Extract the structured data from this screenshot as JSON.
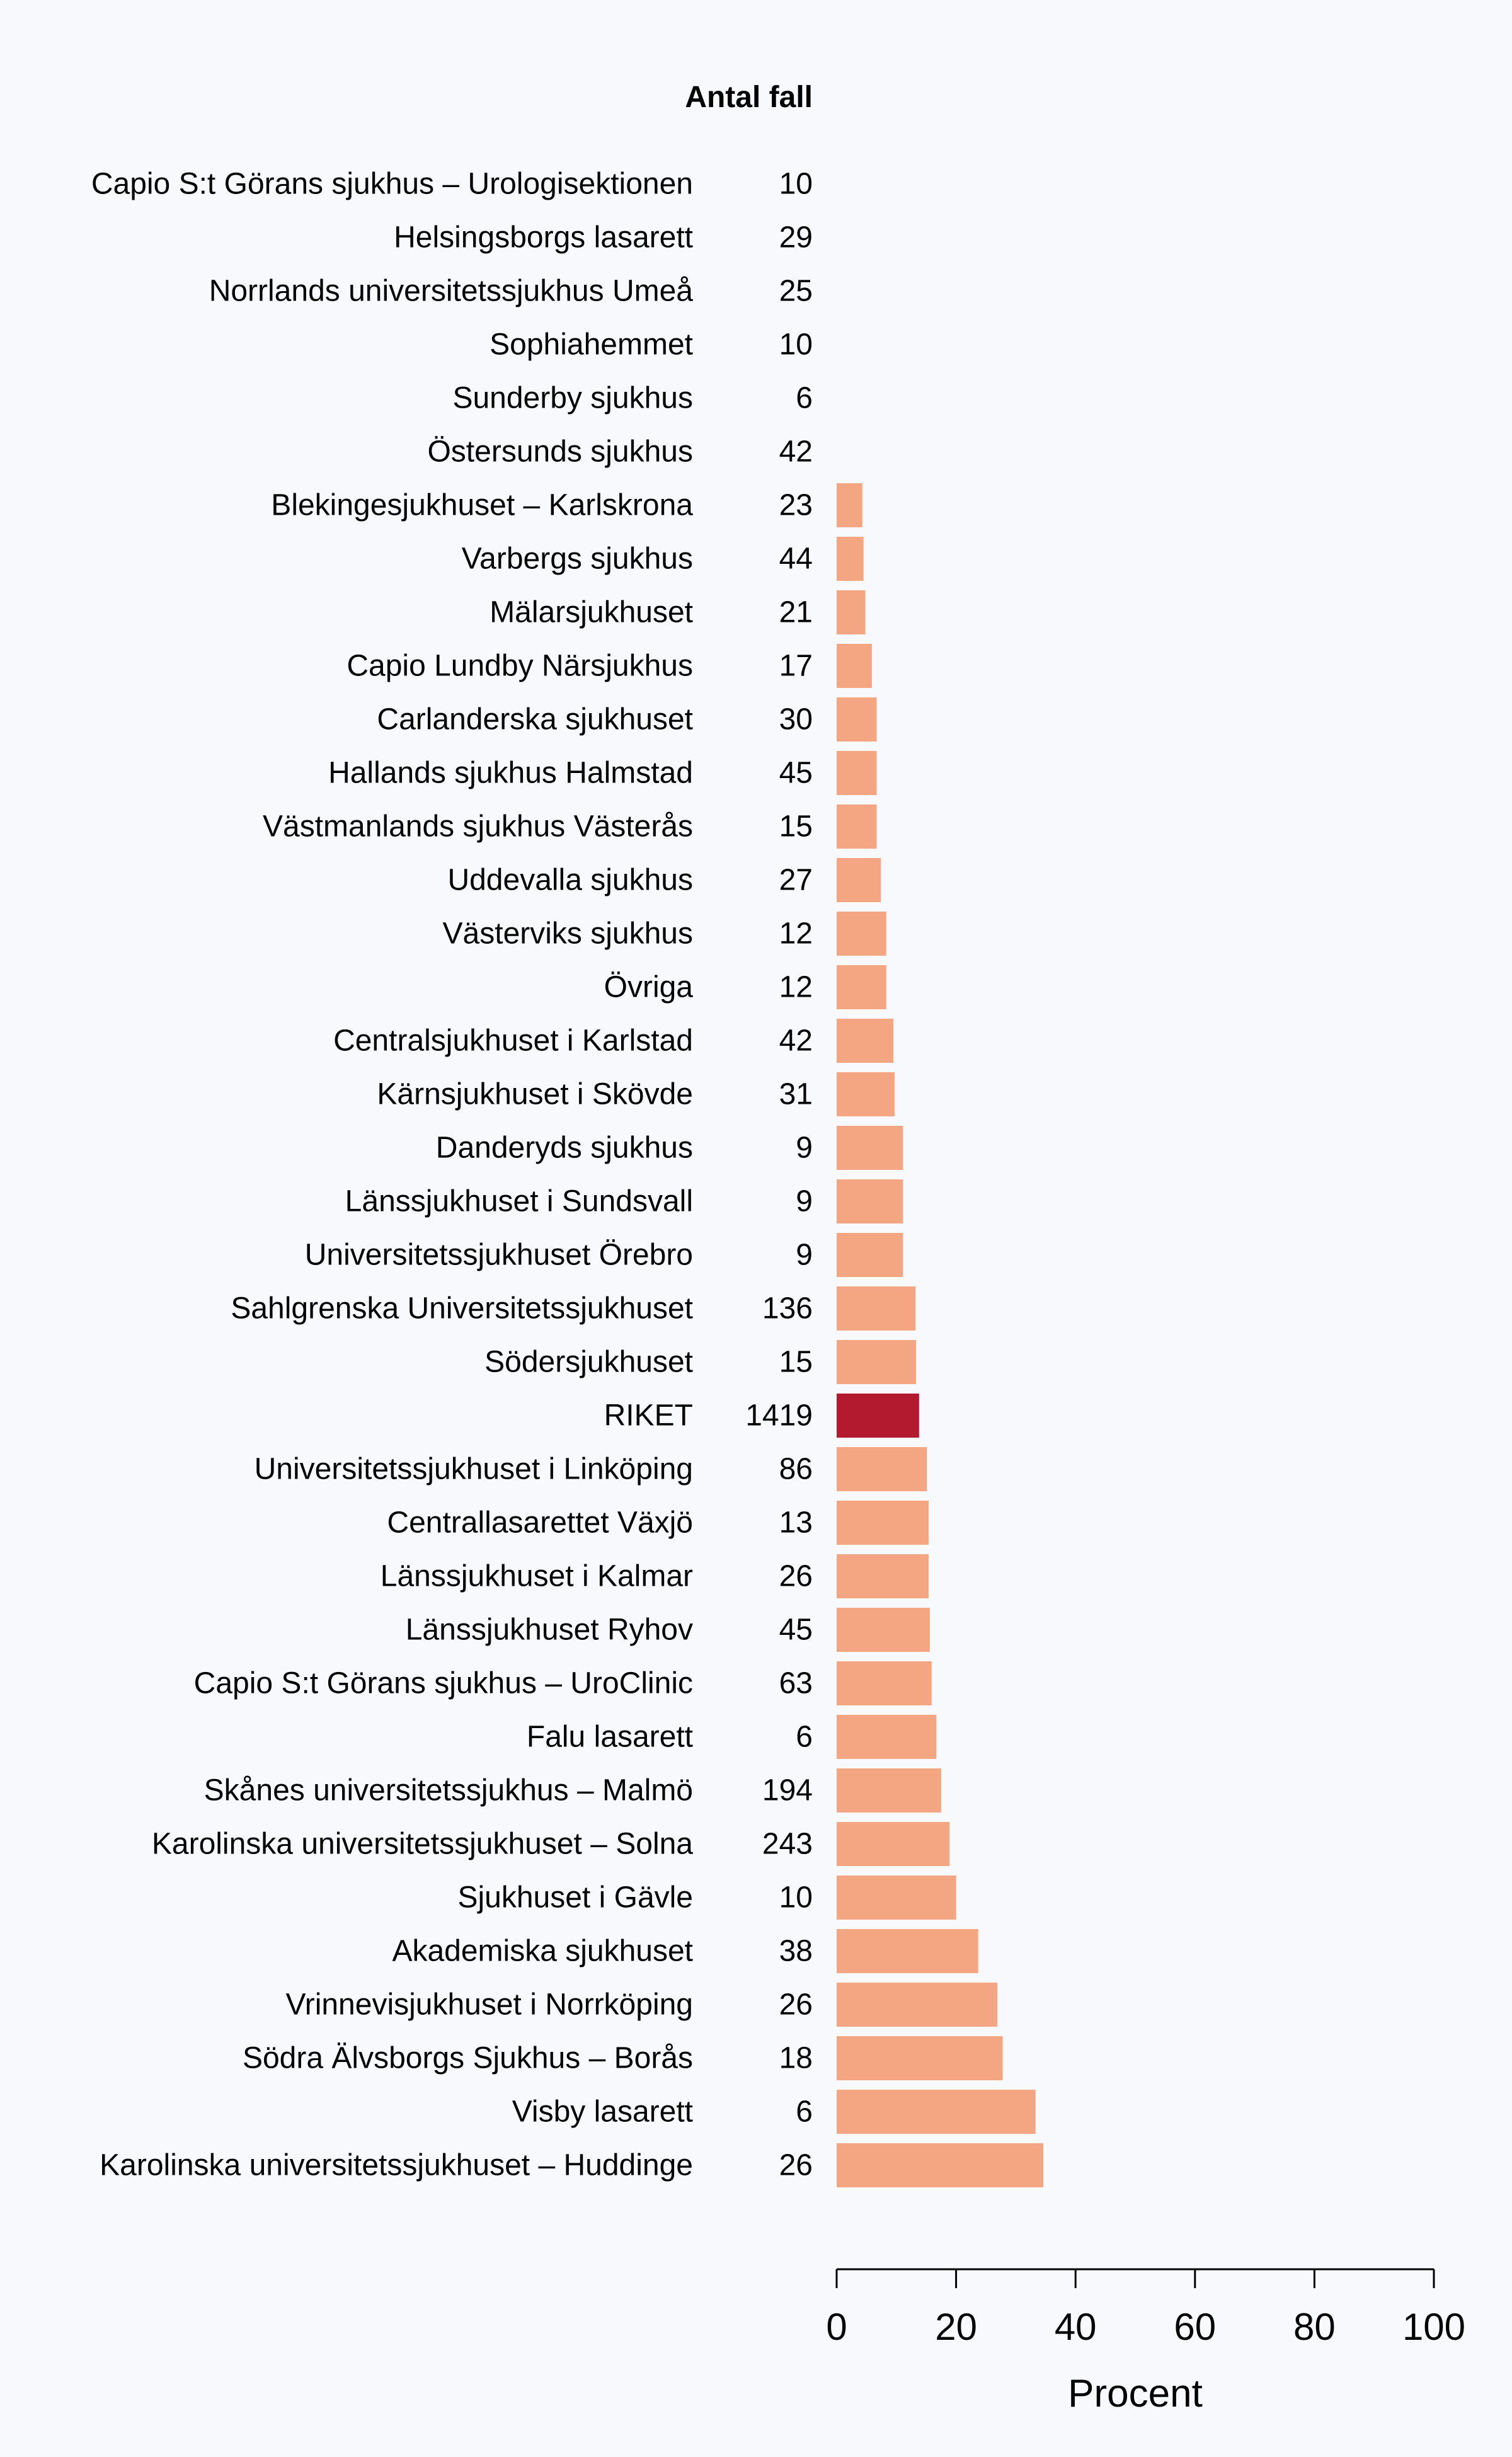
{
  "chart_data": {
    "type": "bar",
    "orientation": "horizontal",
    "count_header": "Antal fall",
    "xlabel": "Procent",
    "xlim": [
      0,
      100
    ],
    "xticks": [
      0,
      20,
      40,
      60,
      80,
      100
    ],
    "colors": {
      "bar": "#f4a683",
      "highlight": "#b31a2f"
    },
    "highlight_category": "RIKET",
    "rows": [
      {
        "category": "Capio S:t Görans sjukhus – Urologisektionen",
        "count": "10",
        "value": null
      },
      {
        "category": "Helsingsborgs lasarett",
        "count": "29",
        "value": null
      },
      {
        "category": "Norrlands universitetssjukhus Umeå",
        "count": "25",
        "value": null
      },
      {
        "category": "Sophiahemmet",
        "count": "10",
        "value": null
      },
      {
        "category": "Sunderby sjukhus",
        "count": "6",
        "value": null
      },
      {
        "category": "Östersunds sjukhus",
        "count": "42",
        "value": null
      },
      {
        "category": "Blekingesjukhuset – Karlskrona",
        "count": "23",
        "value": 4.3
      },
      {
        "category": "Varbergs sjukhus",
        "count": "44",
        "value": 4.5
      },
      {
        "category": "Mälarsjukhuset",
        "count": "21",
        "value": 4.8
      },
      {
        "category": "Capio Lundby Närsjukhus",
        "count": "17",
        "value": 5.9
      },
      {
        "category": "Carlanderska sjukhuset",
        "count": "30",
        "value": 6.7
      },
      {
        "category": "Hallands sjukhus Halmstad",
        "count": "45",
        "value": 6.7
      },
      {
        "category": "Västmanlands sjukhus Västerås",
        "count": "15",
        "value": 6.7
      },
      {
        "category": "Uddevalla sjukhus",
        "count": "27",
        "value": 7.4
      },
      {
        "category": "Västerviks sjukhus",
        "count": "12",
        "value": 8.3
      },
      {
        "category": "Övriga",
        "count": "12",
        "value": 8.3
      },
      {
        "category": "Centralsjukhuset i Karlstad",
        "count": "42",
        "value": 9.5
      },
      {
        "category": "Kärnsjukhuset i Skövde",
        "count": "31",
        "value": 9.7
      },
      {
        "category": "Danderyds sjukhus",
        "count": "9",
        "value": 11.1
      },
      {
        "category": "Länssjukhuset i Sundsvall",
        "count": "9",
        "value": 11.1
      },
      {
        "category": "Universitetssjukhuset Örebro",
        "count": "9",
        "value": 11.1
      },
      {
        "category": "Sahlgrenska Universitetssjukhuset",
        "count": "136",
        "value": 13.2
      },
      {
        "category": "Södersjukhuset",
        "count": "15",
        "value": 13.3
      },
      {
        "category": "RIKET",
        "count": "1419",
        "value": 13.8
      },
      {
        "category": "Universitetssjukhuset i Linköping",
        "count": "86",
        "value": 15.1
      },
      {
        "category": "Centrallasarettet Växjö",
        "count": "13",
        "value": 15.4
      },
      {
        "category": "Länssjukhuset i Kalmar",
        "count": "26",
        "value": 15.4
      },
      {
        "category": "Länssjukhuset Ryhov",
        "count": "45",
        "value": 15.6
      },
      {
        "category": "Capio S:t Görans sjukhus – UroClinic",
        "count": "63",
        "value": 15.9
      },
      {
        "category": "Falu lasarett",
        "count": "6",
        "value": 16.7
      },
      {
        "category": "Skånes universitetssjukhus – Malmö",
        "count": "194",
        "value": 17.5
      },
      {
        "category": "Karolinska universitetssjukhuset – Solna",
        "count": "243",
        "value": 18.9
      },
      {
        "category": "Sjukhuset i Gävle",
        "count": "10",
        "value": 20.0
      },
      {
        "category": "Akademiska sjukhuset",
        "count": "38",
        "value": 23.7
      },
      {
        "category": "Vrinnevisjukhuset i Norrköping",
        "count": "26",
        "value": 26.9
      },
      {
        "category": "Södra Älvsborgs Sjukhus – Borås",
        "count": "18",
        "value": 27.8
      },
      {
        "category": "Visby lasarett",
        "count": "6",
        "value": 33.3
      },
      {
        "category": "Karolinska universitetssjukhuset – Huddinge",
        "count": "26",
        "value": 34.6
      }
    ]
  }
}
